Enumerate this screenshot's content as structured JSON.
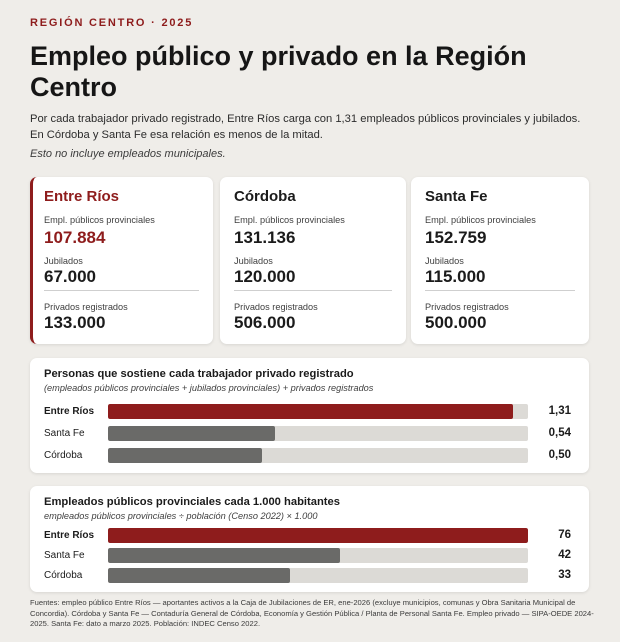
{
  "header": {
    "kicker": "REGIÓN CENTRO · 2025",
    "title": "Empleo público y privado en la Región Centro",
    "lead": "Por cada trabajador privado registrado, Entre Ríos carga con 1,31 empleados públicos provinciales y jubilados. En Córdoba y Santa Fe esa relación es menos de la mitad.",
    "note": "Esto no incluye empleados municipales."
  },
  "cards": [
    {
      "name": "Entre Ríos",
      "publicos_label": "Empl. públicos provinciales",
      "publicos": "107.884",
      "jubilados_label": "Jubilados",
      "jubilados": "67.000",
      "privados_label": "Privados registrados",
      "privados": "133.000"
    },
    {
      "name": "Córdoba",
      "publicos_label": "Empl. públicos provinciales",
      "publicos": "131.136",
      "jubilados_label": "Jubilados",
      "jubilados": "120.000",
      "privados_label": "Privados registrados",
      "privados": "506.000"
    },
    {
      "name": "Santa Fe",
      "publicos_label": "Empl. públicos provinciales",
      "publicos": "152.759",
      "jubilados_label": "Jubilados",
      "jubilados": "115.000",
      "privados_label": "Privados registrados",
      "privados": "500.000"
    }
  ],
  "colors": {
    "accent": "#8e1c1c",
    "bar_gray": "#6a6a68",
    "track": "#dcdad6"
  },
  "chart_data": [
    {
      "type": "bar",
      "orientation": "horizontal",
      "title": "Personas que sostiene cada trabajador privado registrado",
      "subtitle": "(empleados públicos provinciales + jubilados provinciales) + privados registrados",
      "categories": [
        "Entre Ríos",
        "Santa Fe",
        "Córdoba"
      ],
      "values": [
        1.31,
        0.54,
        0.5
      ],
      "value_labels": [
        "1,31",
        "0,54",
        "0,50"
      ],
      "xlim": [
        0,
        1.36
      ],
      "highlight": "Entre Ríos"
    },
    {
      "type": "bar",
      "orientation": "horizontal",
      "title": "Empleados públicos provinciales cada 1.000 habitantes",
      "subtitle": "empleados públicos provinciales ÷ población (Censo 2022) × 1.000",
      "categories": [
        "Entre Ríos",
        "Santa Fe",
        "Córdoba"
      ],
      "values": [
        76,
        42,
        33
      ],
      "value_labels": [
        "76",
        "42",
        "33"
      ],
      "xlim": [
        0,
        76
      ],
      "highlight": "Entre Ríos"
    }
  ],
  "footer": {
    "sources": "Fuentes: empleo público Entre Ríos — aportantes activos a la Caja de Jubilaciones de ER, ene-2026 (excluye municipios, comunas y Obra Sanitaria Municipal de Concordia). Córdoba y Santa Fe — Contaduría General de Córdoba, Economía y Gestión Pública / Planta de Personal Santa Fe. Empleo privado — SIPA-OEDE 2024-2025. Santa Fe: dato a marzo 2025. Población: INDEC Censo 2022."
  }
}
